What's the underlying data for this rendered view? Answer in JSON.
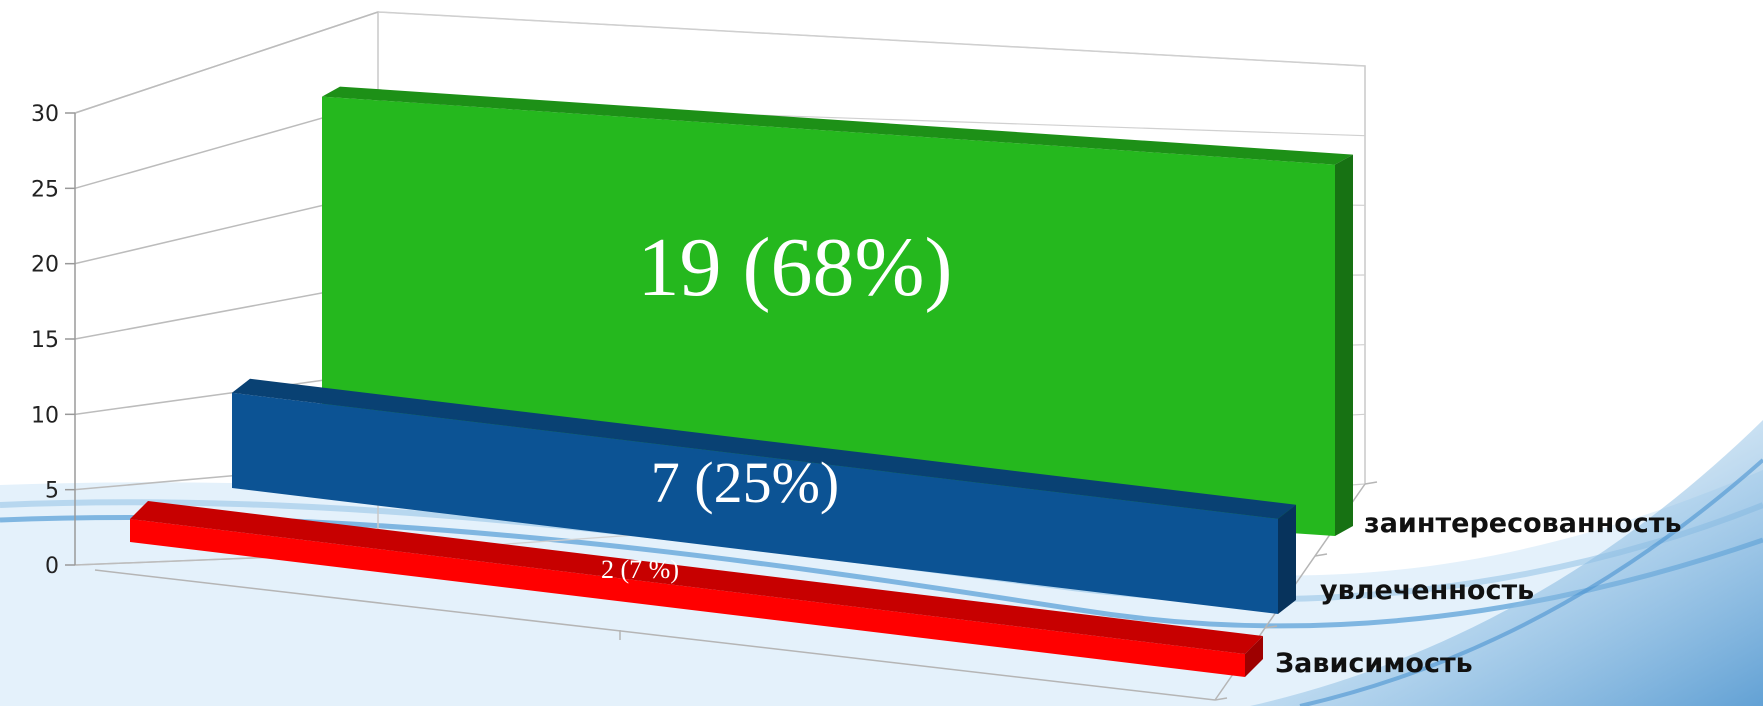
{
  "chart_data": {
    "type": "bar",
    "categories": [
      "Зависимость",
      "увлеченность",
      "заинтересованность"
    ],
    "values": [
      2,
      7,
      19
    ],
    "data_labels": [
      "2  (7 %)",
      "7  (25%)",
      "19  (68%)"
    ],
    "colors": [
      "#ff0000",
      "#0c5394",
      "#25b81e"
    ],
    "ylim": [
      0,
      30
    ],
    "y_ticks": [
      "0",
      "5",
      "10",
      "15",
      "20",
      "25",
      "30"
    ],
    "title": "",
    "xlabel": "",
    "ylabel": "",
    "grid": true,
    "legend": "none"
  }
}
